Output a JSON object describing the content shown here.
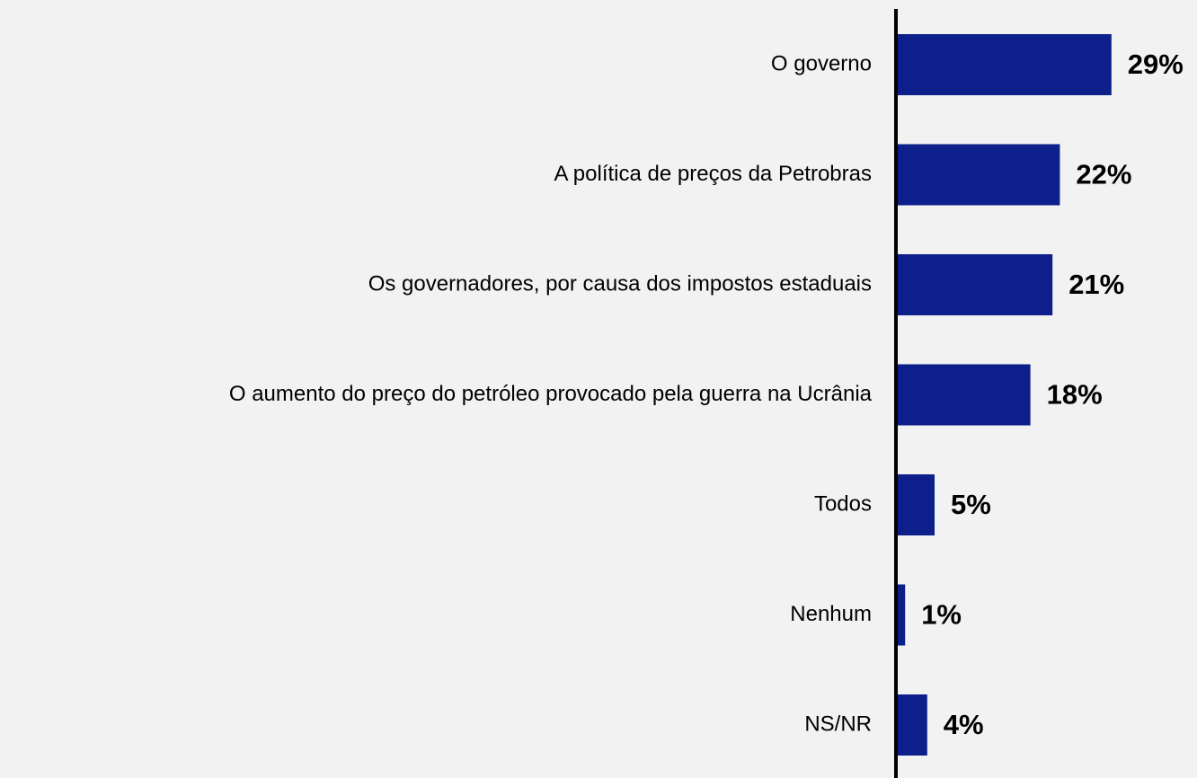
{
  "chart_data": {
    "type": "hbar",
    "categories": [
      "O governo",
      "A política de preços da Petrobras",
      "Os governadores, por causa dos impostos estaduais",
      "O aumento do preço do petróleo provocado pela guerra na Ucrânia",
      "Todos",
      "Nenhum",
      "NS/NR"
    ],
    "values": [
      29,
      22,
      21,
      18,
      5,
      1,
      4
    ],
    "value_labels": [
      "29%",
      "22%",
      "21%",
      "18%",
      "5%",
      "1%",
      "4%"
    ],
    "color": "#0c1f8a"
  }
}
